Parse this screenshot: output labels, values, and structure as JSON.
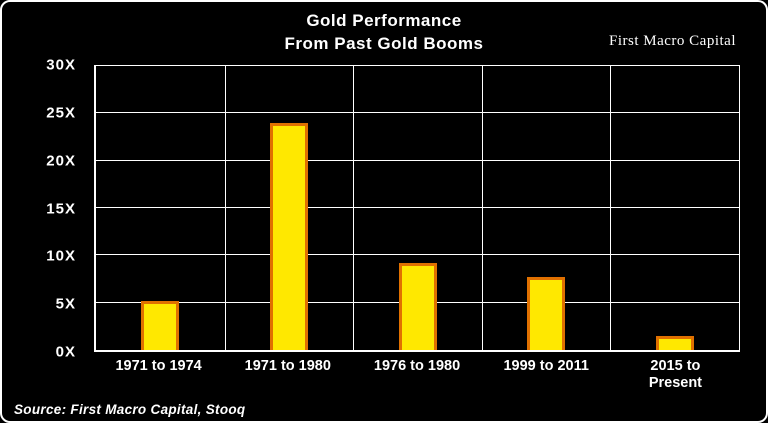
{
  "header": {
    "title_line1": "Gold Performance",
    "title_line2": "From Past Gold Booms",
    "brand": "First Macro Capital"
  },
  "footer": {
    "source": "Source: First Macro Capital, Stooq"
  },
  "chart_data": {
    "type": "bar",
    "title": "Gold Performance From Past Gold Booms",
    "categories": [
      "1971 to 1974",
      "1971 to 1980",
      "1976 to 1980",
      "1999 to 2011",
      "2015 to Present"
    ],
    "tick_labels": [
      "1971 to 1974",
      "1971 to 1980",
      "1976 to 1980",
      "1999 to 2011",
      "2015 to\nPresent"
    ],
    "values": [
      5.2,
      24,
      9.2,
      7.7,
      1.5
    ],
    "xlabel": "",
    "ylabel": "",
    "ylim": [
      0,
      30
    ],
    "ytick_step": 5,
    "ytick_suffix": "X",
    "grid": true,
    "legend": false,
    "bar_color": "#ffe800",
    "bar_border_color": "#e07000",
    "background_color": "#000000",
    "text_color": "#ffffff"
  }
}
